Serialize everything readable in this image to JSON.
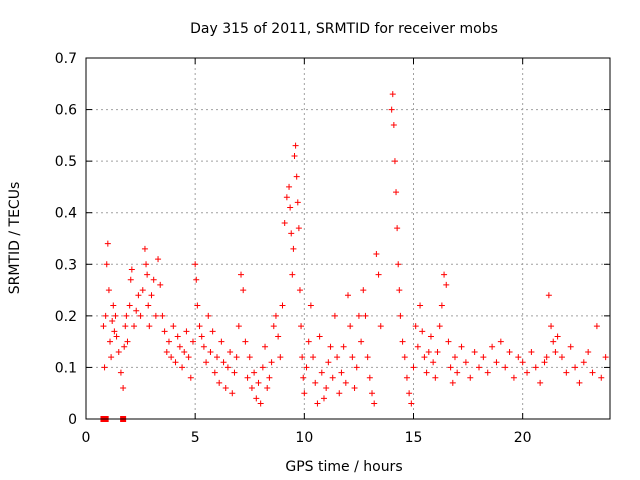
{
  "chart_data": {
    "type": "scatter",
    "title": "Day 315 of 2011, SRMTID for receiver mobs",
    "xlabel": "GPS time / hours",
    "ylabel": "SRMTID / TECUs",
    "xlim": [
      0,
      24
    ],
    "ylim": [
      0,
      0.7
    ],
    "x_ticks": [
      0,
      5,
      10,
      15,
      20
    ],
    "x_tick_labels": [
      "0",
      "5",
      "10",
      "15",
      "20"
    ],
    "y_ticks": [
      0,
      0.1,
      0.2,
      0.3,
      0.4,
      0.5,
      0.6,
      0.7
    ],
    "y_tick_labels": [
      "0",
      "0.1",
      "0.2",
      "0.3",
      "0.4",
      "0.5",
      "0.6",
      "0.7"
    ],
    "grid": true,
    "marker": "plus",
    "color": "#ff0000",
    "series": [
      {
        "x": [
          0.8,
          0.85,
          0.9,
          0.95,
          1.0,
          1.05,
          1.1,
          1.15,
          1.2,
          1.25,
          1.3,
          1.35,
          1.4,
          1.5,
          1.6,
          1.7,
          1.75,
          1.8,
          1.85,
          1.9,
          2.0,
          2.05,
          2.1,
          2.2,
          2.3,
          2.4,
          2.5,
          2.6,
          2.7,
          2.75,
          2.8,
          2.85,
          2.9,
          3.0,
          3.1,
          3.2,
          3.3,
          3.4,
          3.5,
          3.6,
          3.7,
          3.8,
          3.9,
          4.0,
          4.1,
          4.2,
          4.3,
          4.4,
          4.5,
          4.6,
          4.7,
          4.8,
          4.9,
          5.0,
          5.05,
          5.1,
          5.2,
          5.3,
          5.4,
          5.5,
          5.6,
          5.7,
          5.8,
          5.9,
          6.0,
          6.1,
          6.2,
          6.3,
          6.4,
          6.5,
          6.6,
          6.7,
          6.8,
          6.9,
          7.0,
          7.1,
          7.2,
          7.3,
          7.4,
          7.5,
          7.6,
          7.7,
          7.8,
          7.9,
          8.0,
          8.1,
          8.2,
          8.3,
          8.4,
          8.5,
          8.6,
          8.7,
          8.8,
          8.9,
          9.0,
          9.1,
          9.2,
          9.3,
          9.35,
          9.4,
          9.45,
          9.5,
          9.55,
          9.6,
          9.65,
          9.7,
          9.75,
          9.8,
          9.85,
          9.9,
          9.95,
          10.0,
          10.1,
          10.2,
          10.3,
          10.4,
          10.5,
          10.6,
          10.7,
          10.8,
          10.9,
          11.0,
          11.1,
          11.2,
          11.3,
          11.4,
          11.5,
          11.6,
          11.7,
          11.8,
          11.9,
          12.0,
          12.1,
          12.2,
          12.3,
          12.4,
          12.5,
          12.6,
          12.7,
          12.8,
          12.9,
          13.0,
          13.1,
          13.2,
          13.3,
          13.4,
          13.5,
          14.0,
          14.05,
          14.1,
          14.15,
          14.2,
          14.25,
          14.3,
          14.35,
          14.4,
          14.5,
          14.6,
          14.7,
          14.8,
          14.9,
          15.0,
          15.1,
          15.2,
          15.3,
          15.4,
          15.5,
          15.6,
          15.7,
          15.8,
          15.9,
          16.0,
          16.1,
          16.2,
          16.3,
          16.4,
          16.5,
          16.6,
          16.7,
          16.8,
          16.9,
          17.0,
          17.2,
          17.4,
          17.6,
          17.8,
          18.0,
          18.2,
          18.4,
          18.6,
          18.8,
          19.0,
          19.2,
          19.4,
          19.6,
          19.8,
          20.0,
          20.2,
          20.4,
          20.6,
          20.8,
          21.0,
          21.1,
          21.2,
          21.3,
          21.4,
          21.5,
          21.6,
          21.8,
          22.0,
          22.2,
          22.4,
          22.6,
          22.8,
          23.0,
          23.2,
          23.4,
          23.6,
          23.8
        ],
        "y": [
          0.18,
          0.1,
          0.2,
          0.3,
          0.34,
          0.25,
          0.15,
          0.12,
          0.19,
          0.22,
          0.17,
          0.2,
          0.16,
          0.13,
          0.09,
          0.06,
          0.14,
          0.18,
          0.2,
          0.15,
          0.22,
          0.27,
          0.29,
          0.18,
          0.21,
          0.24,
          0.2,
          0.25,
          0.33,
          0.3,
          0.28,
          0.22,
          0.18,
          0.24,
          0.27,
          0.2,
          0.31,
          0.26,
          0.2,
          0.17,
          0.13,
          0.15,
          0.12,
          0.18,
          0.11,
          0.16,
          0.14,
          0.1,
          0.13,
          0.17,
          0.12,
          0.08,
          0.15,
          0.3,
          0.27,
          0.22,
          0.18,
          0.16,
          0.14,
          0.11,
          0.2,
          0.13,
          0.17,
          0.09,
          0.12,
          0.07,
          0.15,
          0.11,
          0.06,
          0.1,
          0.13,
          0.05,
          0.09,
          0.12,
          0.18,
          0.28,
          0.25,
          0.15,
          0.08,
          0.12,
          0.06,
          0.09,
          0.04,
          0.07,
          0.03,
          0.1,
          0.14,
          0.06,
          0.08,
          0.11,
          0.18,
          0.2,
          0.16,
          0.12,
          0.22,
          0.38,
          0.43,
          0.45,
          0.41,
          0.36,
          0.28,
          0.33,
          0.51,
          0.53,
          0.47,
          0.42,
          0.37,
          0.25,
          0.18,
          0.12,
          0.08,
          0.05,
          0.1,
          0.15,
          0.22,
          0.12,
          0.07,
          0.03,
          0.16,
          0.09,
          0.04,
          0.06,
          0.11,
          0.14,
          0.08,
          0.2,
          0.12,
          0.05,
          0.09,
          0.14,
          0.07,
          0.24,
          0.18,
          0.12,
          0.06,
          0.1,
          0.2,
          0.15,
          0.25,
          0.2,
          0.12,
          0.08,
          0.05,
          0.03,
          0.32,
          0.28,
          0.18,
          0.6,
          0.63,
          0.57,
          0.5,
          0.44,
          0.37,
          0.3,
          0.25,
          0.2,
          0.15,
          0.12,
          0.08,
          0.05,
          0.03,
          0.1,
          0.18,
          0.14,
          0.22,
          0.17,
          0.12,
          0.09,
          0.13,
          0.16,
          0.11,
          0.08,
          0.13,
          0.18,
          0.22,
          0.28,
          0.26,
          0.15,
          0.1,
          0.07,
          0.12,
          0.09,
          0.14,
          0.11,
          0.08,
          0.13,
          0.1,
          0.12,
          0.09,
          0.14,
          0.11,
          0.15,
          0.1,
          0.13,
          0.08,
          0.12,
          0.11,
          0.09,
          0.13,
          0.1,
          0.07,
          0.11,
          0.12,
          0.24,
          0.18,
          0.15,
          0.13,
          0.16,
          0.12,
          0.09,
          0.14,
          0.1,
          0.07,
          0.11,
          0.13,
          0.09,
          0.18,
          0.08,
          0.12
        ]
      },
      {
        "marker": "square",
        "x": [
          0.8,
          0.85,
          0.9,
          1.7
        ],
        "y": [
          0,
          0,
          0,
          0
        ]
      }
    ]
  }
}
